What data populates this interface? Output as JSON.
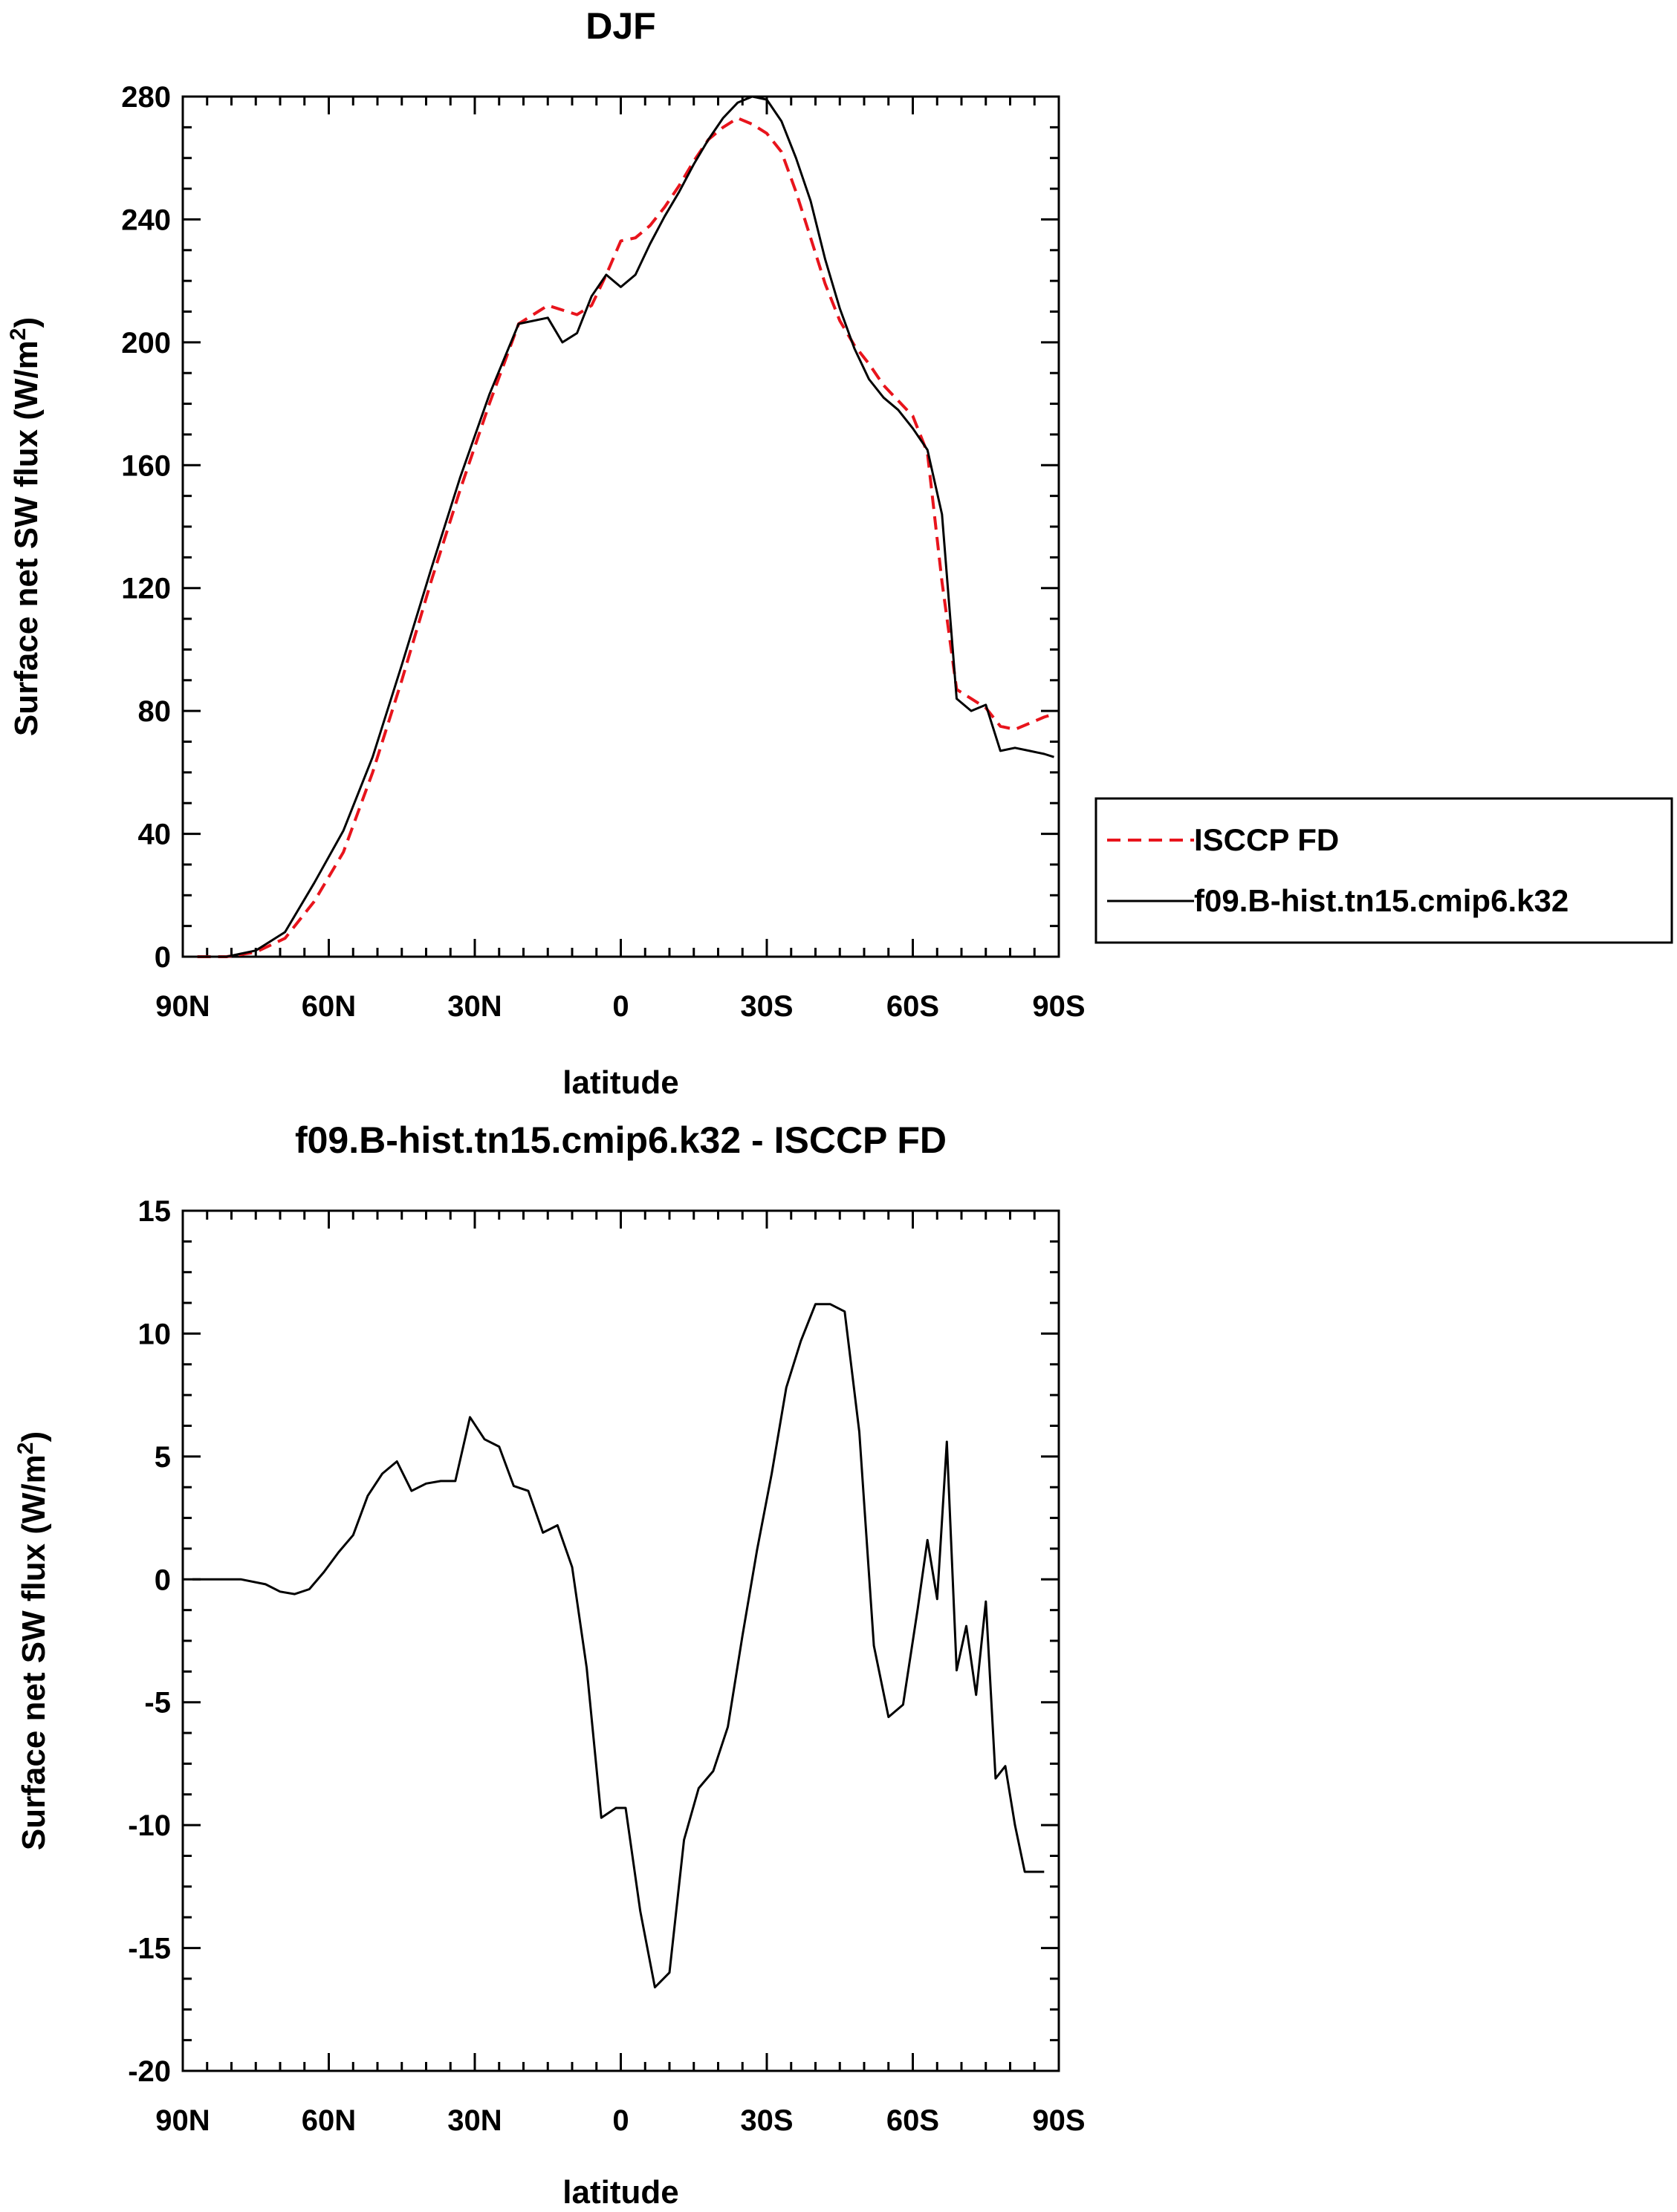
{
  "chart_data": [
    {
      "type": "line",
      "title": "DJF",
      "xlabel": "latitude",
      "ylabel": "Surface net SW flux (W/m",
      "ylabel_sup": "2",
      "ylabel_close": ")",
      "xlim": [
        90,
        -90
      ],
      "ylim": [
        0,
        280
      ],
      "x_ticks": [
        90,
        60,
        30,
        0,
        -30,
        -60,
        -90
      ],
      "x_tick_labels": [
        "90N",
        "60N",
        "30N",
        "0",
        "30S",
        "60S",
        "90S"
      ],
      "y_ticks": [
        0,
        40,
        80,
        120,
        160,
        200,
        240,
        280
      ],
      "y_tick_labels": [
        "0",
        "40",
        "80",
        "120",
        "160",
        "200",
        "240",
        "280"
      ],
      "legend": "outside-right",
      "series": [
        {
          "name": "ISCCP FD",
          "color": "#e8141c",
          "dash": "dashed",
          "x": [
            87,
            81,
            75,
            69,
            63,
            57,
            51,
            45,
            39,
            33,
            27,
            21,
            15,
            9,
            6,
            3,
            0,
            -3,
            -6,
            -9,
            -12,
            -15,
            -18,
            -21,
            -24,
            -27,
            -30,
            -33,
            -36,
            -39,
            -42,
            -45,
            -48,
            -51,
            -54,
            -57,
            -60,
            -63,
            -66,
            -69,
            -72,
            -75,
            -78,
            -81,
            -84,
            -87,
            -89
          ],
          "values": [
            0,
            0,
            1.5,
            6,
            18,
            34,
            60,
            90,
            122,
            152,
            180,
            206,
            212,
            209,
            212,
            222,
            233,
            234,
            238,
            244,
            251,
            259,
            266,
            270,
            273,
            271,
            268,
            262,
            249,
            234,
            219,
            207,
            199,
            193,
            186,
            181,
            176,
            164,
            122,
            87,
            84,
            81,
            75,
            74,
            76,
            78,
            79
          ]
        },
        {
          "name": "f09.B-hist.tn15.cmip6.k32",
          "color": "#000000",
          "dash": "solid",
          "x": [
            87,
            81,
            75,
            69,
            63,
            57,
            51,
            45,
            39,
            33,
            27,
            21,
            15,
            12,
            9,
            6,
            3,
            0,
            -3,
            -6,
            -9,
            -12,
            -15,
            -18,
            -21,
            -24,
            -27,
            -30,
            -33,
            -36,
            -39,
            -42,
            -45,
            -48,
            -51,
            -54,
            -57,
            -60,
            -63,
            -66,
            -69,
            -72,
            -75,
            -78,
            -81,
            -84,
            -87,
            -89
          ],
          "values": [
            0,
            0,
            2,
            8,
            24,
            41,
            65,
            95,
            126,
            156,
            183,
            206,
            208,
            200,
            203,
            215,
            222,
            218,
            222,
            232,
            241,
            249,
            258,
            266,
            273,
            278,
            280,
            279,
            272,
            260,
            246,
            227,
            211,
            198,
            188,
            182,
            178,
            172,
            165,
            144,
            84,
            80,
            82,
            67,
            68,
            67,
            66,
            65
          ]
        }
      ]
    },
    {
      "type": "line",
      "title": "f09.B-hist.tn15.cmip6.k32 - ISCCP FD",
      "xlabel": "latitude",
      "ylabel": "Surface net SW flux (W/m",
      "ylabel_sup": "2",
      "ylabel_close": ")",
      "xlim": [
        90,
        -90
      ],
      "ylim": [
        -20,
        15
      ],
      "x_ticks": [
        90,
        60,
        30,
        0,
        -30,
        -60,
        -90
      ],
      "x_tick_labels": [
        "90N",
        "60N",
        "30N",
        "0",
        "30S",
        "60S",
        "90S"
      ],
      "y_ticks": [
        -20,
        -15,
        -10,
        -5,
        0,
        5,
        10,
        15
      ],
      "y_tick_labels": [
        "-20",
        "-15",
        "-10",
        "-5",
        "0",
        "5",
        "10",
        "15"
      ],
      "series": [
        {
          "color": "#000000",
          "x": [
            88,
            83,
            78,
            73,
            70,
            67,
            64,
            61,
            58,
            55,
            52,
            49,
            46,
            43,
            40,
            37,
            34,
            31,
            28,
            25,
            22,
            19,
            16,
            13,
            10,
            7,
            4,
            1,
            -1,
            -4,
            -7,
            -10,
            -13,
            -16,
            -19,
            -22,
            -25,
            -28,
            -31,
            -34,
            -37,
            -40,
            -43,
            -46,
            -49,
            -52,
            -55,
            -58,
            -61,
            -63,
            -65,
            -67,
            -69,
            -71,
            -73,
            -75,
            -77,
            -79,
            -81,
            -83,
            -85,
            -87
          ],
          "values": [
            0,
            0,
            0,
            -0.2,
            -0.5,
            -0.6,
            -0.4,
            0.3,
            1.1,
            1.8,
            3.4,
            4.3,
            4.8,
            3.6,
            3.9,
            4.0,
            4.0,
            6.6,
            5.7,
            5.4,
            3.8,
            3.6,
            1.9,
            2.2,
            0.5,
            -3.6,
            -9.7,
            -9.3,
            -9.3,
            -13.5,
            -16.6,
            -16.0,
            -10.6,
            -8.5,
            -7.8,
            -6.0,
            -2.3,
            1.2,
            4.3,
            7.8,
            9.7,
            11.2,
            11.2,
            10.9,
            6.0,
            -2.7,
            -5.6,
            -5.1,
            -1.2,
            1.6,
            -0.8,
            5.6,
            -3.7,
            -1.9,
            -4.7,
            -0.9,
            -8.1,
            -7.6,
            -10.0,
            -11.9,
            -11.9,
            -11.9
          ]
        }
      ]
    }
  ]
}
